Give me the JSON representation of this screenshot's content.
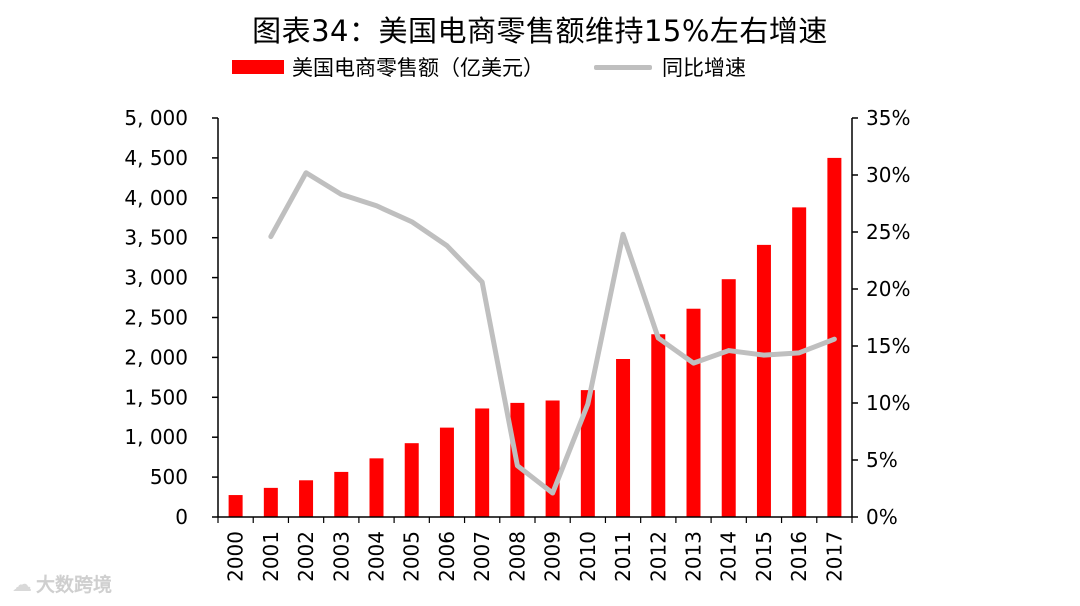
{
  "title": "图表34：美国电商零售额维持15%左右增速",
  "legend": {
    "bar_label": "美国电商零售额（亿美元）",
    "line_label": "同比增速"
  },
  "watermark": {
    "icon": "cloud-logo-icon",
    "text": "大数跨境"
  },
  "chart_data": {
    "type": "bar",
    "categories": [
      "2000",
      "2001",
      "2002",
      "2003",
      "2004",
      "2005",
      "2006",
      "2007",
      "2008",
      "2009",
      "2010",
      "2011",
      "2012",
      "2013",
      "2014",
      "2015",
      "2016",
      "2017"
    ],
    "series": [
      {
        "name": "美国电商零售额（亿美元）",
        "type": "bar",
        "axis": "left",
        "color": "#ff0000",
        "values": [
          275,
          365,
          460,
          565,
          735,
          925,
          1120,
          1360,
          1430,
          1460,
          1590,
          1980,
          2290,
          2610,
          2980,
          3410,
          3880,
          4500
        ]
      },
      {
        "name": "同比增速",
        "type": "line",
        "axis": "right",
        "color": "#bfbfbf",
        "values": [
          null,
          24.6,
          30.2,
          28.3,
          27.3,
          25.9,
          23.8,
          20.6,
          4.5,
          2.1,
          9.9,
          24.8,
          15.7,
          13.5,
          14.6,
          14.2,
          14.4,
          15.6
        ]
      }
    ],
    "y_left": {
      "ticks": [
        0,
        500,
        1000,
        1500,
        2000,
        2500,
        3000,
        3500,
        4000,
        4500,
        5000
      ],
      "tick_labels": [
        "0",
        "500",
        "1, 000",
        "1, 500",
        "2, 000",
        "2, 500",
        "3, 000",
        "3, 500",
        "4, 000",
        "4, 500",
        "5, 000"
      ],
      "ylim": [
        0,
        5000
      ]
    },
    "y_right": {
      "ticks": [
        0,
        5,
        10,
        15,
        20,
        25,
        30,
        35
      ],
      "tick_labels": [
        "0%",
        "5%",
        "10%",
        "15%",
        "20%",
        "25%",
        "30%",
        "35%"
      ],
      "ylim": [
        0,
        35
      ]
    },
    "grid": false,
    "legend_position": "top"
  }
}
